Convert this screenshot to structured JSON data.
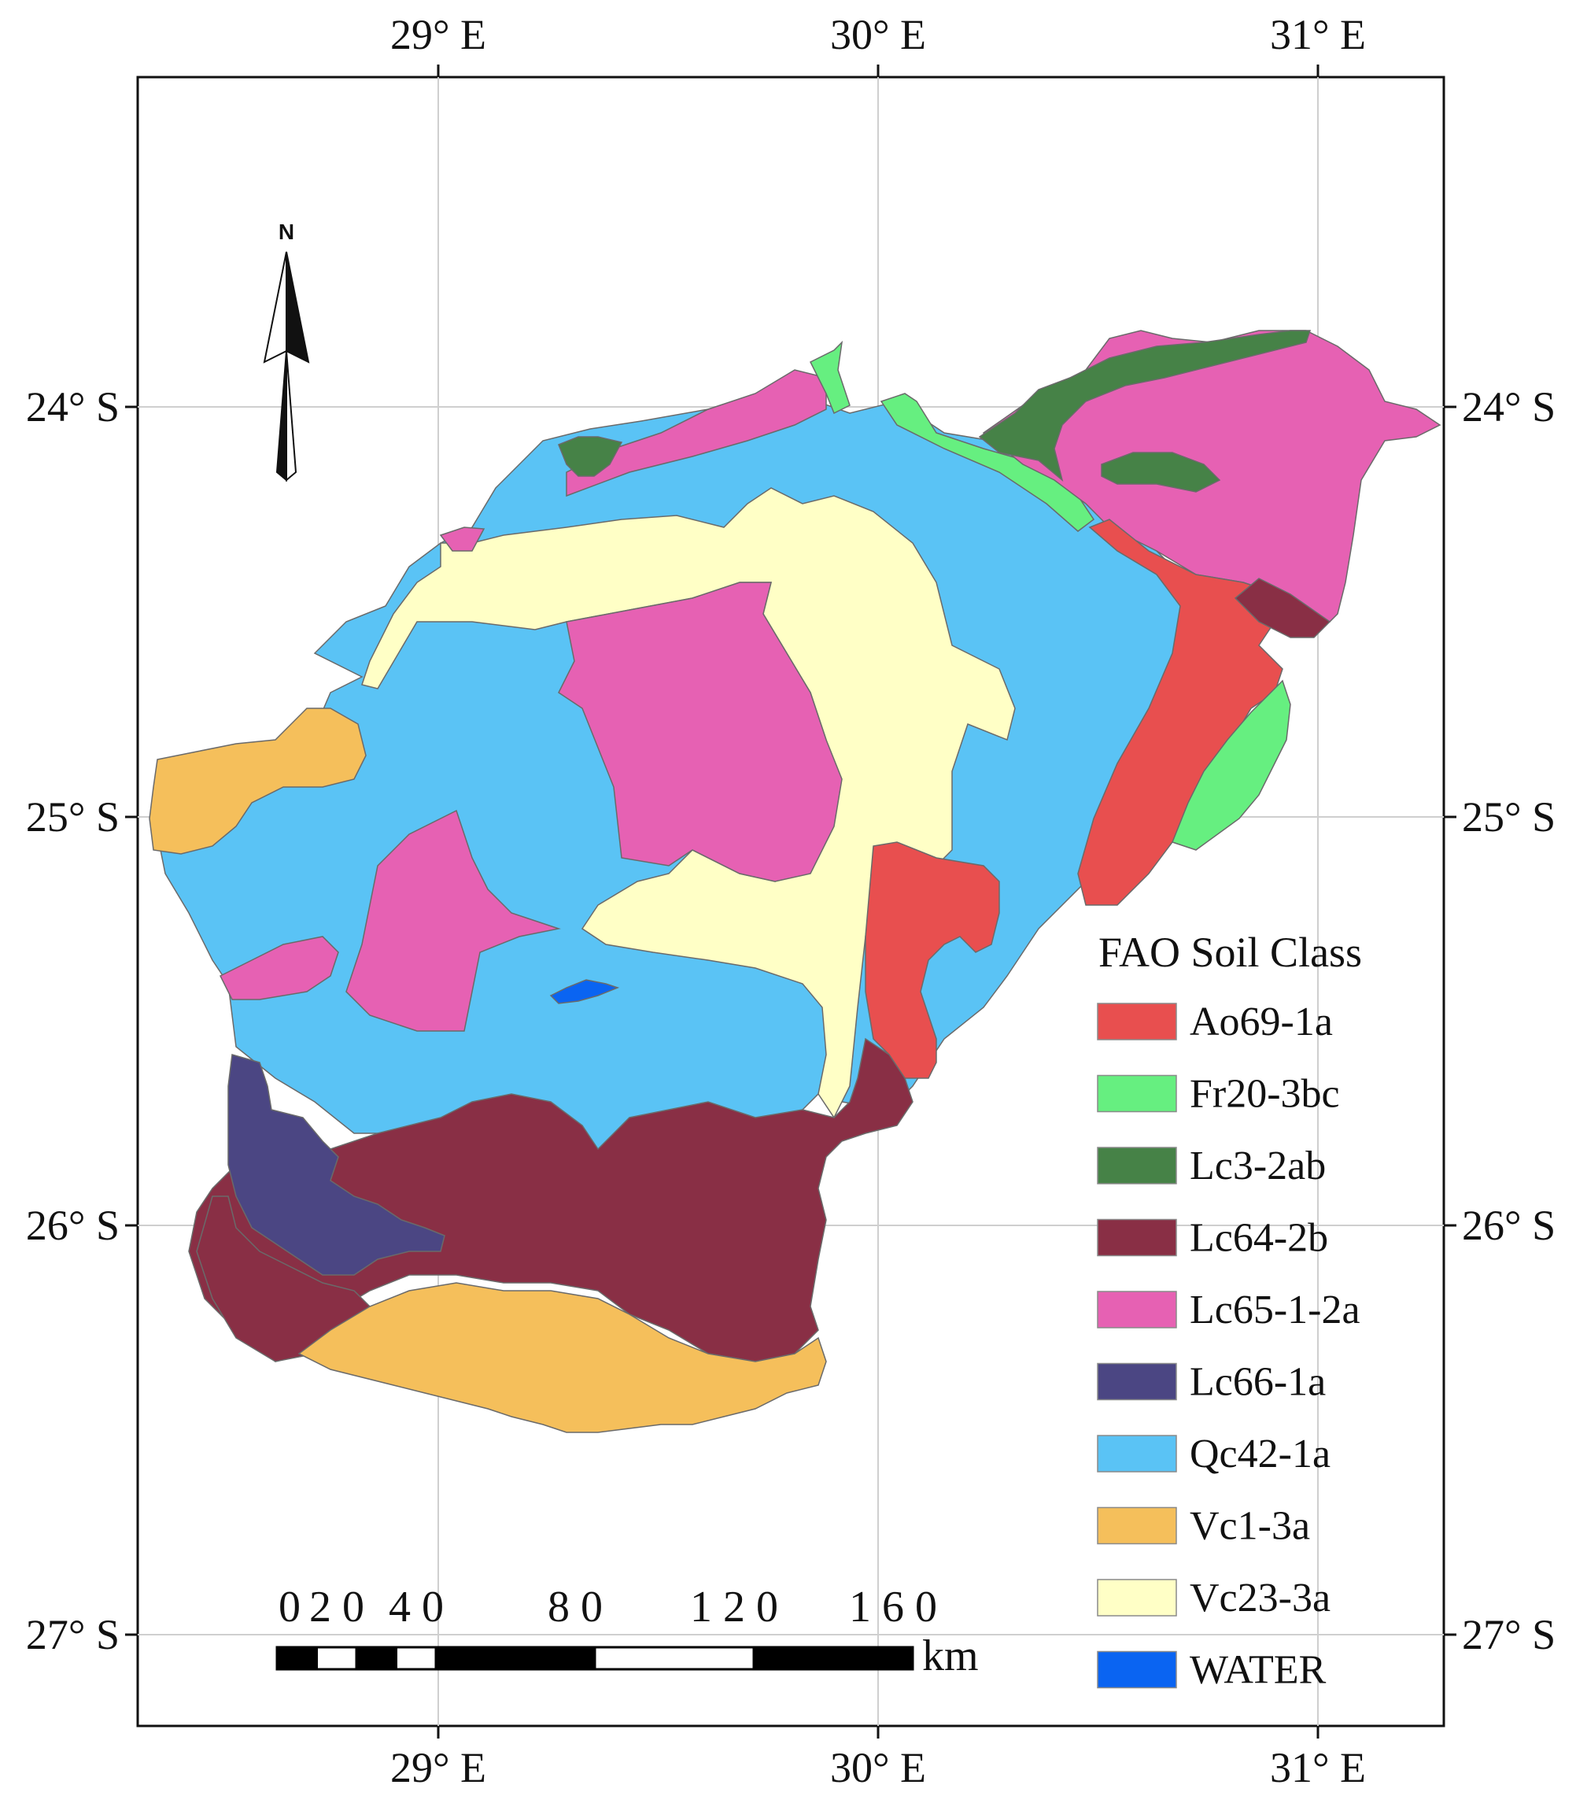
{
  "legend": {
    "title": "FAO Soil Class",
    "items": [
      {
        "label": "Ao69-1a",
        "color": "#e84f4f"
      },
      {
        "label": "Fr20-3bc",
        "color": "#66ef80"
      },
      {
        "label": "Lc3-2ab",
        "color": "#468247"
      },
      {
        "label": "Lc64-2b",
        "color": "#892f45"
      },
      {
        "label": "Lc65-1-2a",
        "color": "#e661b3"
      },
      {
        "label": "Lc66-1a",
        "color": "#4b4683"
      },
      {
        "label": "Qc42-1a",
        "color": "#5ac3f5"
      },
      {
        "label": "Vc1-3a",
        "color": "#f5bf5b"
      },
      {
        "label": "Vc23-3a",
        "color": "#ffffc6"
      },
      {
        "label": "WATER",
        "color": "#0a64f2"
      }
    ]
  },
  "axes": {
    "longitude_top": [
      "29° E",
      "30° E",
      "31° E"
    ],
    "longitude_bottom": [
      "29° E",
      "30° E",
      "31° E"
    ],
    "latitude_left": [
      "24° S",
      "25° S",
      "26° S",
      "27° S"
    ],
    "latitude_right": [
      "24° S",
      "25° S",
      "26° S",
      "27° S"
    ]
  },
  "north_arrow": {
    "label": "N"
  },
  "scale_bar": {
    "ticks": [
      "0",
      "20",
      "40",
      "80",
      "120",
      "160"
    ],
    "unit": "km"
  }
}
